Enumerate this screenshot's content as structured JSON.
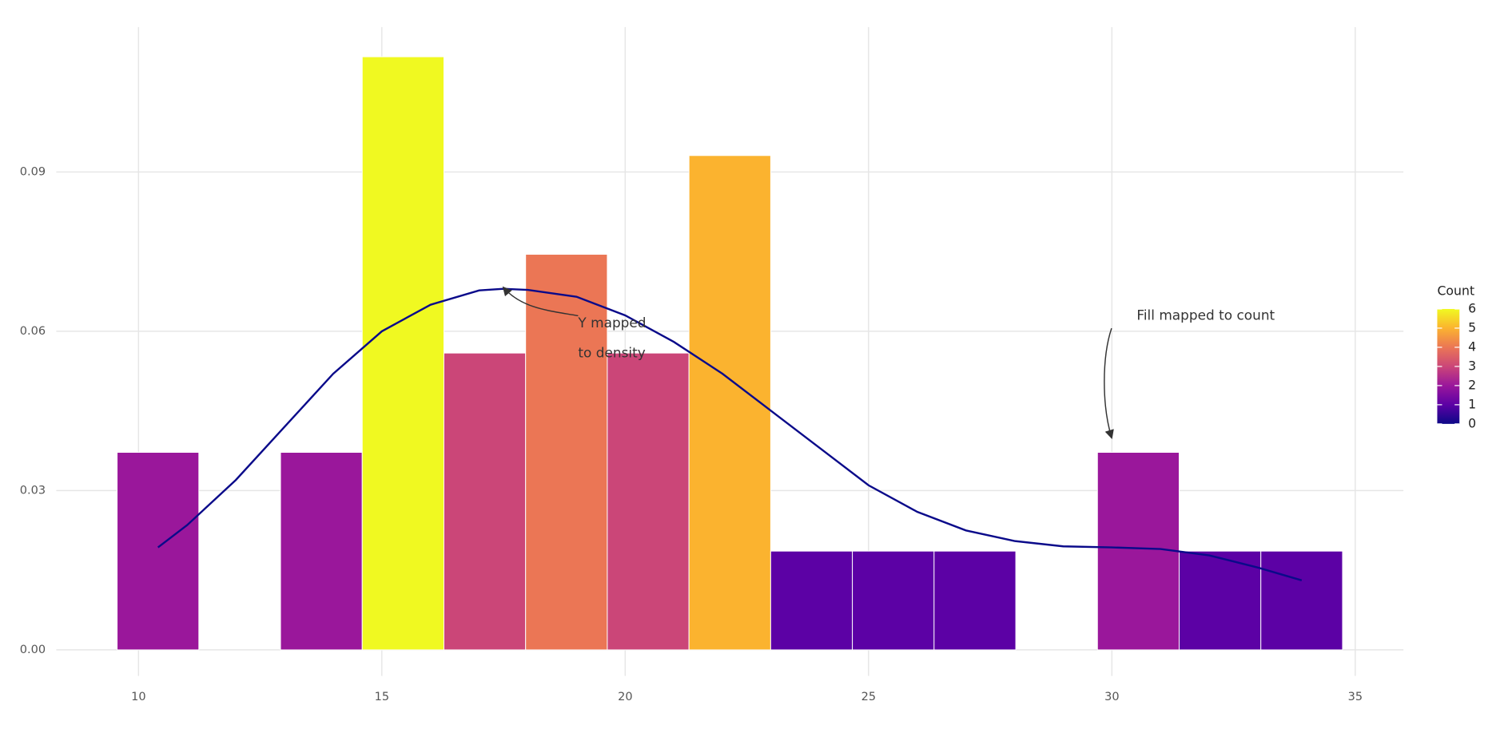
{
  "chart_data": {
    "type": "histogram",
    "bins": [
      9.5607,
      11.2393,
      12.9179,
      14.5964,
      16.275,
      17.9536,
      19.6321,
      21.3107,
      22.9893,
      24.6679,
      26.3464,
      28.025,
      29.7036,
      31.3821,
      33.0607,
      34.7393
    ],
    "values": [
      0.0372,
      0,
      0.0372,
      0.1117,
      0.0559,
      0.0745,
      0.0559,
      0.0931,
      0.0186,
      0.0186,
      0.0186,
      0,
      0.0372,
      0.0186,
      0.0186
    ],
    "colors": [
      "#9a179b",
      "#0d0887",
      "#9a179b",
      "#f0f921",
      "#cb4678",
      "#eb7655",
      "#cb4678",
      "#fbb32f",
      "#5c01a5",
      "#5c01a5",
      "#5c01a5",
      "#0d0887",
      "#9a179b",
      "#5c01a5",
      "#5c01a5"
    ],
    "density_curve": {
      "color": "#0a0a8a",
      "x": [
        10.4,
        11,
        12,
        13,
        14,
        15,
        16,
        17,
        17.5,
        18,
        19,
        20,
        21,
        22,
        23,
        24,
        25,
        26,
        27,
        28,
        29,
        30,
        31,
        32,
        33,
        33.9
      ],
      "values": [
        0.0193,
        0.0235,
        0.032,
        0.042,
        0.052,
        0.06,
        0.065,
        0.0677,
        0.068,
        0.0678,
        0.0665,
        0.063,
        0.058,
        0.052,
        0.045,
        0.038,
        0.031,
        0.026,
        0.0225,
        0.0205,
        0.0195,
        0.0193,
        0.019,
        0.0178,
        0.0155,
        0.0131
      ]
    },
    "xlim": [
      8.31,
      35.99
    ],
    "xticks": [
      10,
      15,
      20,
      25,
      30,
      35
    ],
    "ylim": [
      -0.0049,
      0.1173
    ],
    "yticks": [
      {
        "value": 0,
        "label": "0.00"
      },
      0.03,
      0.06,
      0.09
    ],
    "grid": true,
    "annotations": [
      "Y mapped",
      "to density",
      "Fill mapped to count"
    ],
    "legend": {
      "title": "Count",
      "lim": [
        0,
        6
      ],
      "ticks": [
        0,
        1,
        2,
        3,
        4,
        5,
        6
      ],
      "colors": [
        "#0d0887",
        "#5c01a5",
        "#9a179b",
        "#cb4678",
        "#eb7655",
        "#fbb32f",
        "#f0f921"
      ]
    }
  }
}
